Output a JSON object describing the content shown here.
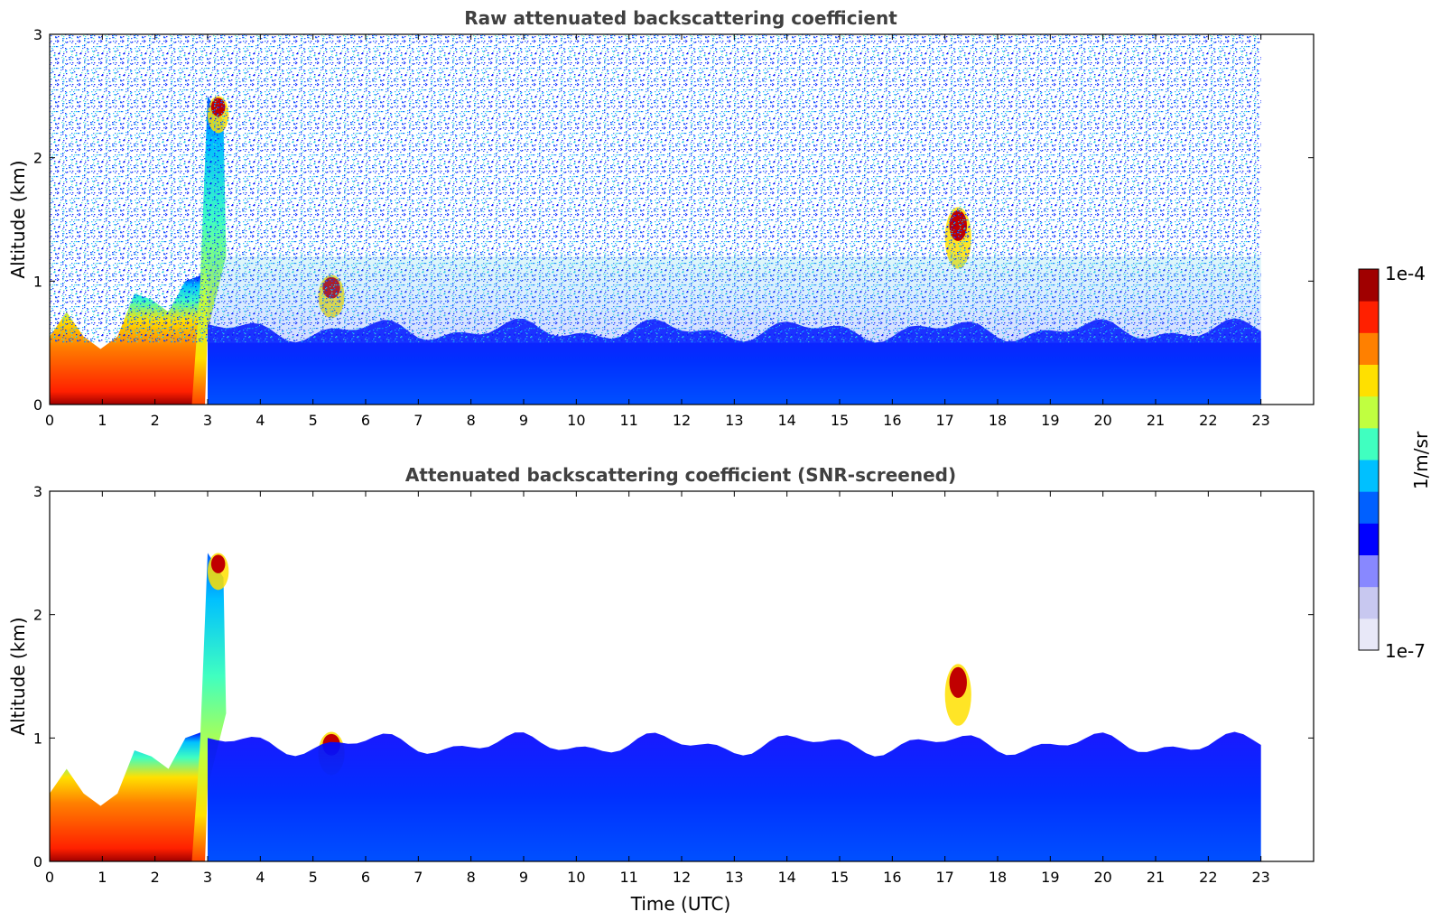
{
  "chart_data": [
    {
      "type": "heatmap",
      "title": "Raw attenuated backscattering coefficient",
      "xlabel": "",
      "ylabel": "Altitude (km)",
      "xlim": [
        0,
        24
      ],
      "ylim": [
        0,
        3
      ],
      "x_ticks": [
        0,
        1,
        2,
        3,
        4,
        5,
        6,
        7,
        8,
        9,
        10,
        11,
        12,
        13,
        14,
        15,
        16,
        17,
        18,
        19,
        20,
        21,
        22,
        23
      ],
      "y_ticks": [
        0,
        1,
        2,
        3
      ],
      "data_end_time": 23,
      "grid": false,
      "features": [
        {
          "name": "boundary layer aerosol",
          "t_start": 0.0,
          "t_end": 2.9,
          "top_km": [
            0.55,
            0.75,
            0.55,
            0.45,
            0.55,
            0.9,
            0.85,
            0.75,
            1.0,
            1.05
          ]
        },
        {
          "name": "rising plume",
          "t_start": 2.7,
          "t_end": 3.4,
          "top_km": 2.5
        },
        {
          "name": "cloud",
          "t_start": 3.0,
          "t_end": 3.4,
          "altitude_km": [
            2.2,
            2.5
          ]
        },
        {
          "name": "cloud",
          "t_start": 5.1,
          "t_end": 5.6,
          "altitude_km": [
            0.7,
            1.05
          ]
        },
        {
          "name": "cloud",
          "t_start": 17.0,
          "t_end": 17.5,
          "altitude_km": [
            1.1,
            1.6
          ]
        },
        {
          "name": "residual layer",
          "t_start": 3.0,
          "t_end": 23.0,
          "top_km": 0.6
        }
      ]
    },
    {
      "type": "heatmap",
      "title": "Attenuated backscattering coefficient (SNR-screened)",
      "xlabel": "Time (UTC)",
      "ylabel": "Altitude (km)",
      "xlim": [
        0,
        24
      ],
      "ylim": [
        0,
        3
      ],
      "x_ticks": [
        0,
        1,
        2,
        3,
        4,
        5,
        6,
        7,
        8,
        9,
        10,
        11,
        12,
        13,
        14,
        15,
        16,
        17,
        18,
        19,
        20,
        21,
        22,
        23
      ],
      "y_ticks": [
        0,
        1,
        2,
        3
      ],
      "data_end_time": 23,
      "grid": false,
      "features": [
        {
          "name": "boundary layer aerosol",
          "t_start": 0.0,
          "t_end": 2.9,
          "top_km": [
            0.55,
            0.75,
            0.55,
            0.45,
            0.55,
            0.9,
            0.85,
            0.75,
            1.0,
            1.05
          ]
        },
        {
          "name": "rising plume",
          "t_start": 2.7,
          "t_end": 3.4,
          "top_km": 2.5
        },
        {
          "name": "cloud",
          "t_start": 3.0,
          "t_end": 3.4,
          "altitude_km": [
            2.2,
            2.5
          ]
        },
        {
          "name": "cloud",
          "t_start": 5.1,
          "t_end": 5.6,
          "altitude_km": [
            0.7,
            1.05
          ]
        },
        {
          "name": "cloud",
          "t_start": 17.0,
          "t_end": 17.5,
          "altitude_km": [
            1.1,
            1.6
          ]
        },
        {
          "name": "screened layer",
          "t_start": 3.0,
          "t_end": 23.0,
          "top_km": 0.95
        }
      ]
    }
  ],
  "colorbar": {
    "label": "1/m/sr",
    "min_label": "1e-7",
    "max_label": "1e-4",
    "colormap": [
      "#e8e8f8",
      "#c8c8f0",
      "#8888ff",
      "#0000ff",
      "#0060ff",
      "#00c0ff",
      "#40ffc0",
      "#c0ff40",
      "#ffe000",
      "#ff8000",
      "#ff2000",
      "#a00000"
    ]
  }
}
